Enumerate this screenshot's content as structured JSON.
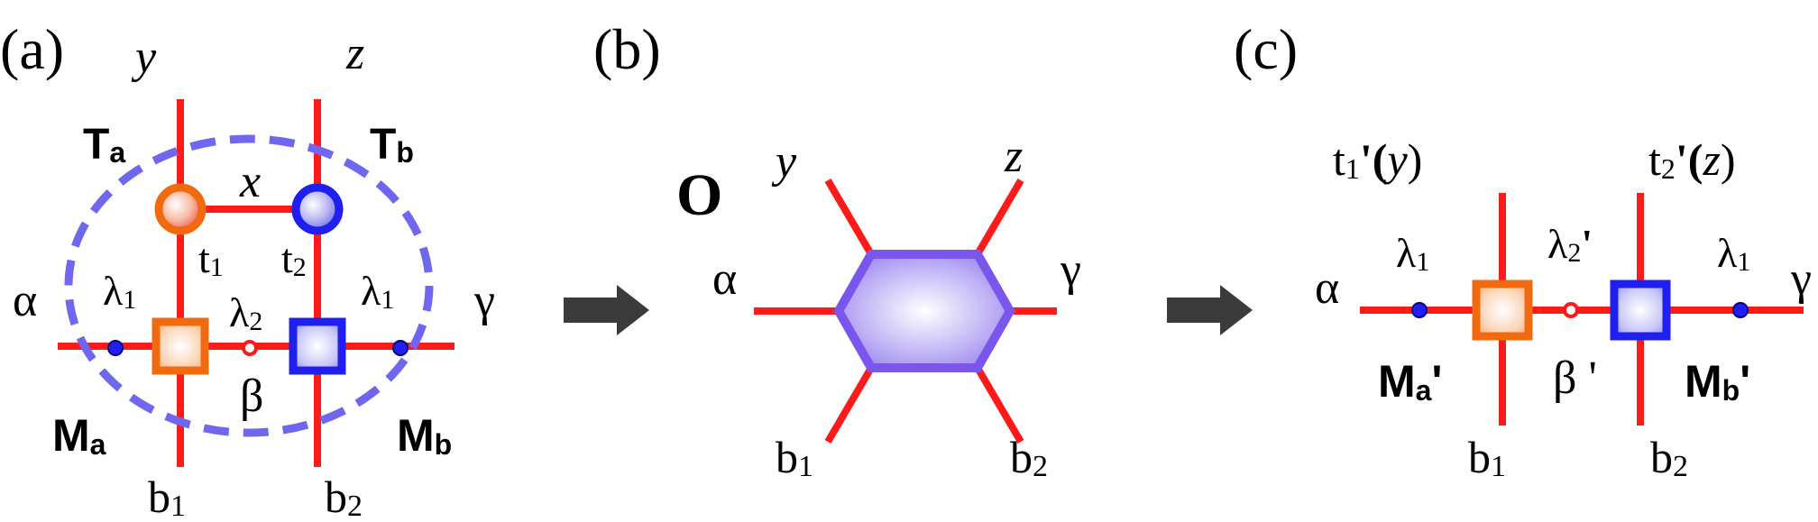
{
  "colors": {
    "bond": "#ff1a1a",
    "orange": "#f26a10",
    "blue": "#1f1ff0",
    "purple_dash": "#6f67f0",
    "hexagon_edge": "#7a55ee",
    "arrow": "#3b3b3b"
  },
  "panel_a": {
    "tag": "(a)",
    "y": "y",
    "z": "z",
    "Ta_main": "T",
    "Ta_sub": "a",
    "Tb_main": "T",
    "Tb_sub": "b",
    "x": "x",
    "t1_main": "t",
    "t1_sub": "1",
    "t2_main": "t",
    "t2_sub": "2",
    "alpha": "α",
    "gamma": "γ",
    "lambda1_left_main": "λ",
    "lambda1_left_sub": "1",
    "lambda2_main": "λ",
    "lambda2_sub": "2",
    "lambda1_right_main": "λ",
    "lambda1_right_sub": "1",
    "beta": "β",
    "Ma_main": "M",
    "Ma_sub": "a",
    "Mb_main": "M",
    "Mb_sub": "b",
    "b1_main": "b",
    "b1_sub": "1",
    "b2_main": "b",
    "b2_sub": "2"
  },
  "panel_b": {
    "tag": "(b)",
    "O": "O",
    "y": "y",
    "z": "z",
    "alpha": "α",
    "gamma": "γ",
    "b1_main": "b",
    "b1_sub": "1",
    "b2_main": "b",
    "b2_sub": "2"
  },
  "panel_c": {
    "tag": "(c)",
    "t1_main": "t",
    "t1_sub": "1",
    "t1_suffix": "'(",
    "t1_var": "y",
    "t1_close": ")",
    "t2_main": "t",
    "t2_sub": "2",
    "t2_suffix": "'(",
    "t2_var": "z",
    "t2_close": ")",
    "alpha": "α",
    "gamma": "γ",
    "lambda1_left_main": "λ",
    "lambda1_left_sub": "1",
    "lambda2_main": "λ",
    "lambda2_sub": "2",
    "lambda2_prime": "'",
    "lambda1_right_main": "λ",
    "lambda1_right_sub": "1",
    "beta": "β '",
    "Ma_main": "M",
    "Ma_sub": "a",
    "Ma_prime": "'",
    "Mb_main": "M",
    "Mb_sub": "b",
    "Mb_prime": "'",
    "b1_main": "b",
    "b1_sub": "1",
    "b2_main": "b",
    "b2_sub": "2"
  }
}
